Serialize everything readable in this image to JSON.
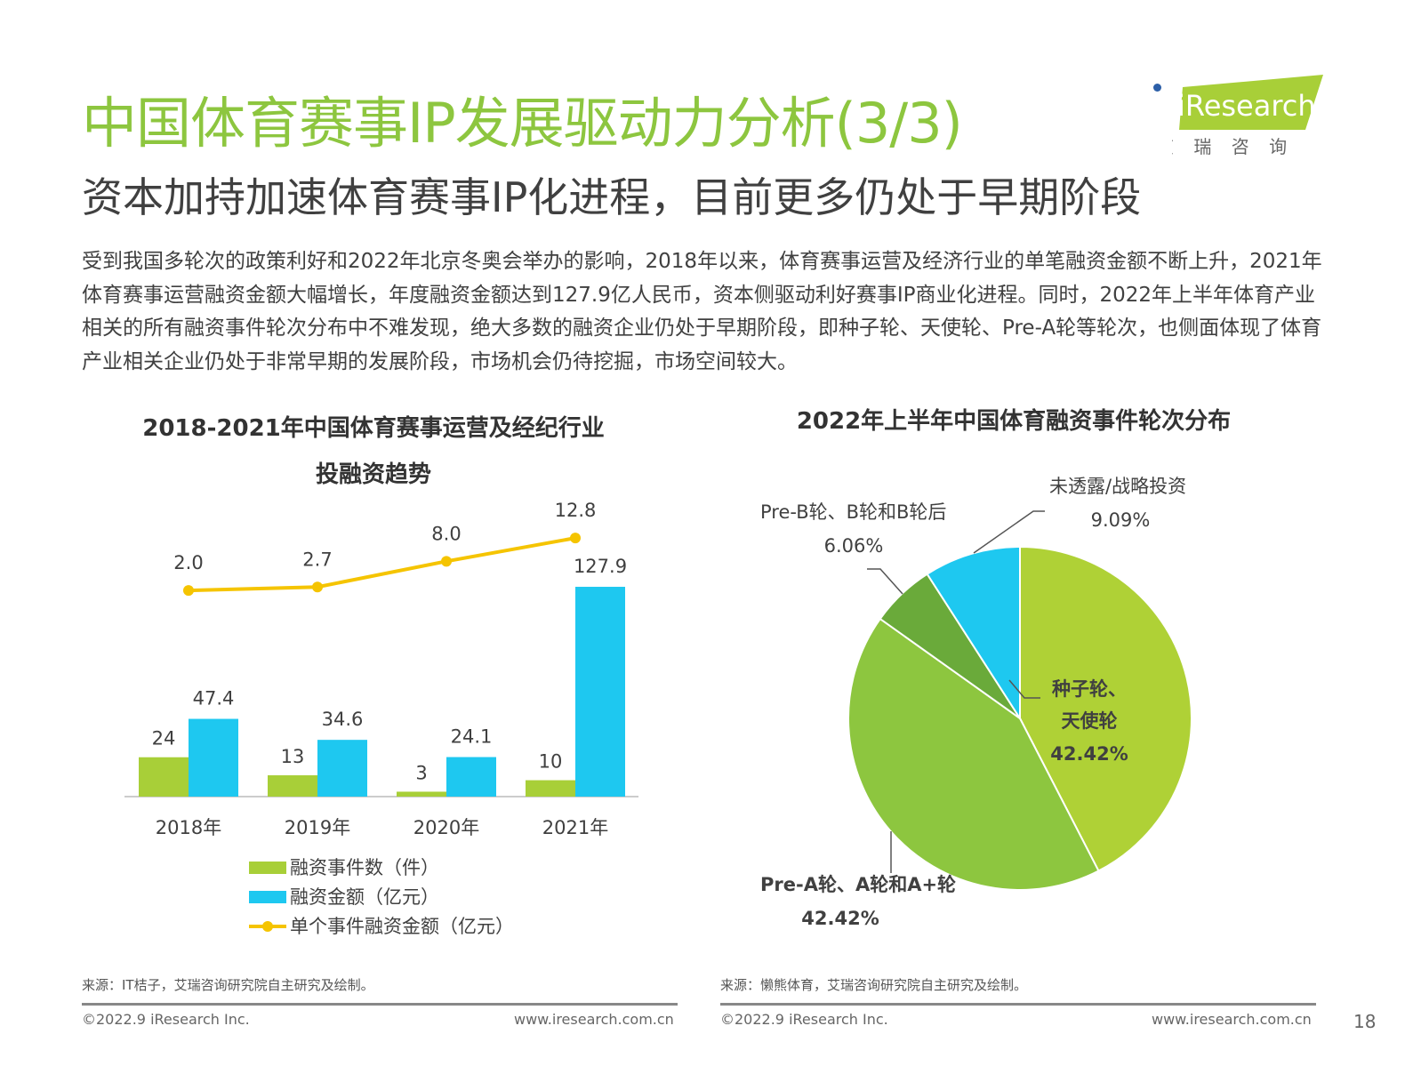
{
  "header": {
    "title": "中国体育赛事IP发展驱动力分析(3/3)",
    "subtitle": "资本加持加速体育赛事IP化进程，目前更多仍处于早期阶段",
    "logo": {
      "brand": "iResearch",
      "cn": "艾 瑞 咨 询"
    }
  },
  "body_text": "受到我国多轮次的政策利好和2022年北京冬奥会举办的影响，2018年以来，体育赛事运营及经济行业的单笔融资金额不断上升，2021年体育赛事运营融资金额大幅增长，年度融资金额达到127.9亿人民币，资本侧驱动利好赛事IP商业化进程。同时，2022年上半年体育产业相关的所有融资事件轮次分布中不难发现，绝大多数的融资企业仍处于早期阶段，即种子轮、天使轮、Pre-A轮等轮次，也侧面体现了体育产业相关企业仍处于非常早期的发展阶段，市场机会仍待挖掘，市场空间较大。",
  "chart_data": [
    {
      "type": "bar",
      "title": "2018-2021年中国体育赛事运营及经纪行业投融资趋势",
      "categories": [
        "2018年",
        "2019年",
        "2020年",
        "2021年"
      ],
      "series": [
        {
          "name": "融资事件数（件）",
          "kind": "bar",
          "color": "#a8cf38",
          "values": [
            24,
            13,
            3,
            10
          ]
        },
        {
          "name": "融资金额（亿元）",
          "kind": "bar",
          "color": "#1ec8f0",
          "values": [
            47.4,
            34.6,
            24.1,
            127.9
          ]
        },
        {
          "name": "单个事件融资金额（亿元）",
          "kind": "line",
          "color": "#f5c400",
          "values": [
            2.0,
            2.7,
            8.0,
            12.8
          ]
        }
      ],
      "legend": "bottom"
    },
    {
      "type": "pie",
      "title": "2022年上半年中国体育融资事件轮次分布",
      "slices": [
        {
          "label": "种子轮、天使轮",
          "value": 42.42,
          "display": "42.42%",
          "color": "#afd136"
        },
        {
          "label": "Pre-A轮、A轮和A+轮",
          "value": 42.42,
          "display": "42.42%",
          "color": "#8dc63f"
        },
        {
          "label": "Pre-B轮、B轮和B轮后",
          "value": 6.06,
          "display": "6.06%",
          "color": "#6aaa3a"
        },
        {
          "label": "未透露/战略投资",
          "value": 9.09,
          "display": "9.09%",
          "color": "#1ec8f0"
        }
      ]
    }
  ],
  "footer": {
    "source_left": "来源：IT桔子，艾瑞咨询研究院自主研究及绘制。",
    "source_right": "来源：懒熊体育，艾瑞咨询研究院自主研究及绘制。",
    "copyright": "©2022.9 iResearch Inc.",
    "url": "www.iresearch.com.cn",
    "page": "18"
  }
}
